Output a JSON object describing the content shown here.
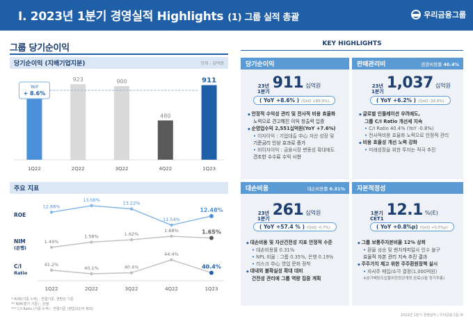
{
  "header": {
    "title": "I. 2023년 1분기 경영실적 Highlights",
    "subtitle": "(1) 그룹 실적 총괄",
    "logo_text": "우리금융그룹"
  },
  "left": {
    "section_title": "그룹 당기순이익",
    "net_income": {
      "title": "당기순이익 (지배기업지분)",
      "unit": "단위 : 십억원",
      "yoy_label": "YoY",
      "yoy_value": "+ 8.6%"
    },
    "kpi": {
      "title": "주요 지표",
      "rows": [
        {
          "label": "ROE",
          "sublabel": "",
          "values": [
            "12.88%",
            "13.56%",
            "13.22%",
            "11.54%",
            "12.48%"
          ]
        },
        {
          "label": "NIM",
          "sublabel": "(은행)",
          "values": [
            "1.49%",
            "1.58%",
            "1.62%",
            "1.68%",
            "1.65%"
          ]
        },
        {
          "label": "C/I",
          "sublabel": "Ratio",
          "values": [
            "41.2%",
            "40.1%",
            "40.4%",
            "44.4%",
            "40.4%"
          ]
        }
      ],
      "quarters": [
        "1Q22",
        "2Q22",
        "3Q22",
        "4Q22",
        "1Q23"
      ]
    },
    "footnotes": [
      "* ROE(기중 누적) : 연결기준, 연환산 기준",
      "** NIM(분기 기준) : 은행",
      "*** C/I Ratio (기중 누적) : 연결기준 (영업외손익 제외)"
    ]
  },
  "chart_data": {
    "type": "bar",
    "categories": [
      "1Q22",
      "2Q22",
      "3Q22",
      "4Q22",
      "1Q23"
    ],
    "values": [
      839,
      923,
      900,
      480,
      911
    ],
    "title": "당기순이익 (지배기업지분)",
    "ylabel": "",
    "ylim": [
      0,
      1000
    ],
    "colors": [
      "#4a90d9",
      "#d9d9d9",
      "#d9d9d9",
      "#595959",
      "#1f5fa8"
    ]
  },
  "right": {
    "key_title": "KEY HIGHLIGHTS",
    "cards": {
      "net_income": {
        "title": "당기순이익",
        "period_line1": "23년",
        "period_line2": "1분기",
        "value": "911",
        "unit": "십억원",
        "yoy": "( YoY +8.6% )",
        "qoq": "(QoQ +89.9%)",
        "bullets": [
          {
            "type": "b1",
            "text": "안정적 수익성 관리 및 전사적 비용 효율화"
          },
          {
            "type": "ind",
            "text": "노력으로 견고해진 이익 창출력 입증"
          },
          {
            "type": "b1",
            "text": "순영업수익 2,551십억원(YoY +7.6%)"
          },
          {
            "type": "sub",
            "text": "이자이익 : 기업대출 中心 자산 성장 및"
          },
          {
            "type": "ind",
            "text": "기준금리 인상 효과로 증가"
          },
          {
            "type": "sub",
            "text": "비이자이익 : 금융시장 변동성 확대에도"
          },
          {
            "type": "ind",
            "text": "견조한 수수료 수익 시현"
          }
        ]
      },
      "sga": {
        "title": "판매관리비",
        "right_label": "판관비용률",
        "right_value": "40.4%",
        "period_line1": "23년",
        "period_line2": "1분기",
        "value": "1,037",
        "unit": "십억원",
        "yoy": "( YoY +6.2% )",
        "qoq": "(QoQ -34.9%)",
        "bullets": [
          {
            "type": "b1",
            "text": "글로벌 인플레이션 우려에도,"
          },
          {
            "type": "ind",
            "text": "그룹 C/I Ratio 개선세 지속"
          },
          {
            "type": "sub",
            "text": "C/I Ratio 40.4% (YoY -0.8%)"
          },
          {
            "type": "sub",
            "text": "전사적비용 효율화 노력으로 안정적 관리"
          },
          {
            "type": "b1",
            "text": "비용 효율성 개선 노력 강화"
          },
          {
            "type": "sub",
            "text": "미래성장을 위한 투자는 적극 추진"
          }
        ]
      },
      "credit_cost": {
        "title": "대손비용",
        "right_label": "대손비용률",
        "right_value": "0.31%",
        "period_line1": "23년",
        "period_line2": "1분기",
        "value": "261",
        "unit": "십억원",
        "yoy": "( YoY +57.4 % )",
        "qoq": "(QoQ -0.7%)",
        "bullets": [
          {
            "type": "b1",
            "text": "대손비용 및 자산건전성 지표 안정적 수준"
          },
          {
            "type": "sub",
            "text": "대손비용률 0.31%"
          },
          {
            "type": "sub",
            "text": "NPL 비율 : 그룹 0.35%, 은행 0.19%"
          },
          {
            "type": "sub",
            "text": "리스크 中心 영업 문화 정착"
          },
          {
            "type": "b1",
            "text": "대내외 불확실성 확대 대비"
          },
          {
            "type": "ind",
            "text": "건전성 관리에 그룹 역량 집중 계획"
          }
        ]
      },
      "capital": {
        "title": "자본적정성",
        "period_line1": "1분기",
        "period_line2": "CET1",
        "value": "12.1",
        "unit": "%(E)",
        "yoy": "( YoY +0.8%p)",
        "qoq": "(QoQ +0.5%p)",
        "bullets": [
          {
            "type": "b1",
            "text": "그룹 보통주자본비율 12% 상회"
          },
          {
            "type": "sub",
            "text": "환율 상승 및 벤처캐피탈사 인수 불구"
          },
          {
            "type": "ind",
            "text": "효율적 자본 관리 지속 추진 결과"
          },
          {
            "type": "b1",
            "text": "주주가치 제고 위한 주주환원정책 실시"
          },
          {
            "type": "sub",
            "text": "자사주 매입/소각 결정(1,000억원)"
          },
          {
            "type": "ind",
            "text": "※분기배당도입을위한정관개정 완료(1월 정기주총)"
          }
        ]
      }
    }
  },
  "page_footer": "2023년 1분기 경영실적 | 우리금융그룹 IR"
}
